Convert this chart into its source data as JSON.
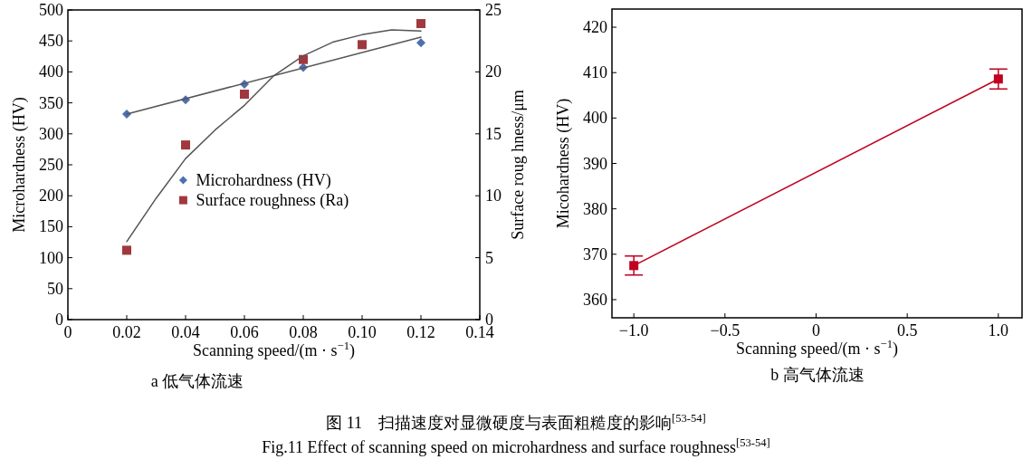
{
  "chart_data": [
    {
      "type": "scatter",
      "xlabel": "Scanning speed/(m · s$^{−1}$)",
      "ylabel": "Microhardness (HV)",
      "y2label": "Surface roug hness/μm",
      "xlim": [
        0,
        0.14
      ],
      "xticks": [
        0,
        0.02,
        0.04,
        0.06,
        0.08,
        {
          "value": 0.1,
          "label": "0.10"
        },
        0.12,
        0.14
      ],
      "ylim": [
        0,
        500
      ],
      "yticks": [
        0,
        50,
        100,
        150,
        200,
        250,
        300,
        350,
        400,
        450,
        500
      ],
      "y2lim": [
        0,
        25
      ],
      "y2ticks": [
        0,
        5,
        10,
        15,
        20,
        25
      ],
      "legend": "center",
      "series": [
        {
          "name": "Microhardness (HV)",
          "color": "#4f6fb0",
          "marker": "diamond",
          "x": [
            0.02,
            0.04,
            0.06,
            0.08,
            0.12
          ],
          "values": [
            332,
            355,
            380,
            407,
            447
          ]
        },
        {
          "name": "Surface roughness (Ra)",
          "color": "#a0393f",
          "marker": "square",
          "axis": "y2",
          "x": [
            0.02,
            0.04,
            0.06,
            0.08,
            0.1,
            0.12
          ],
          "values": [
            5.6,
            14.1,
            18.2,
            21.0,
            22.2,
            23.9
          ]
        },
        {
          "type": "line",
          "color": "#555555",
          "marker": "none",
          "x": [
            0.02,
            0.12
          ],
          "values": [
            332,
            456
          ]
        },
        {
          "type": "line",
          "color": "#555555",
          "marker": "none",
          "axis": "y2",
          "x": [
            0.02,
            0.03,
            0.04,
            0.05,
            0.06,
            0.07,
            0.08,
            0.09,
            0.1,
            0.11,
            0.12
          ],
          "values": [
            6.3,
            9.8,
            13.0,
            15.3,
            17.3,
            19.7,
            21.3,
            22.4,
            23.0,
            23.4,
            23.3
          ]
        }
      ],
      "annotations": [
        "a  低气体流速",
        "图 11　扫描速度对显微硬度与表面粗糙度的影响$^{[53-54]}$",
        "Fig.11 Effect of scanning speed on microhardness and surface roughness$^{[53-54]}$"
      ]
    },
    {
      "type": "line",
      "xlabel": "Scanning speed/(m · s$^{−1}$)",
      "ylabel": "Micohardness (HV)",
      "xlim": [
        -1.12,
        1.13
      ],
      "xticks": [
        {
          "value": -1,
          "label": "−1.0"
        },
        {
          "value": -0.5,
          "label": "−0.5"
        },
        0,
        {
          "value": 0.5,
          "label": "0.5"
        },
        {
          "value": 1,
          "label": "1.0"
        }
      ],
      "ylim": [
        356,
        424
      ],
      "yticks": [
        360,
        370,
        380,
        390,
        400,
        410,
        420
      ],
      "marker": "square",
      "series": [
        {
          "color": "#c00020",
          "x": [
            -1,
            1
          ],
          "values": [
            367.5,
            408.6
          ],
          "errors": [
            2.1,
            2.2
          ]
        }
      ],
      "annotations": [
        "b  高气体流速"
      ]
    }
  ]
}
